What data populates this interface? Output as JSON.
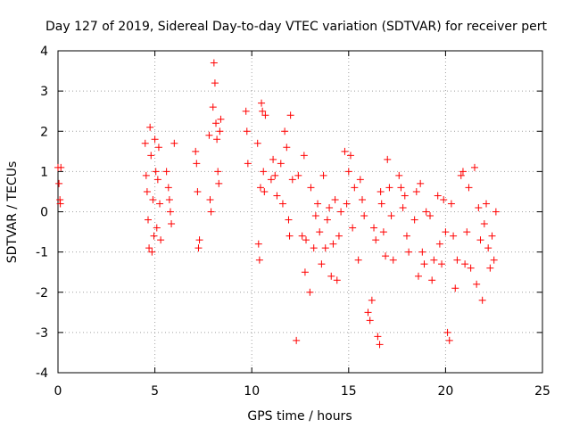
{
  "chart_data": {
    "type": "scatter",
    "title": "Day 127 of 2019, Sidereal Day-to-day VTEC variation (SDTVAR) for receiver pert",
    "xlabel": "GPS time / hours",
    "ylabel": "SDTVAR / TECUs",
    "xlim": [
      0,
      25
    ],
    "ylim": [
      -4,
      4
    ],
    "x_ticks": [
      0,
      5,
      10,
      15,
      20,
      25
    ],
    "y_ticks": [
      -4,
      -3,
      -2,
      -1,
      0,
      1,
      2,
      3,
      4
    ],
    "grid": true,
    "marker": "+",
    "series": [
      {
        "name": "SDTVAR",
        "color": "#ff0000",
        "points": [
          [
            0.0,
            1.1
          ],
          [
            0.05,
            0.7
          ],
          [
            0.1,
            0.3
          ],
          [
            0.12,
            0.2
          ],
          [
            0.15,
            1.1
          ],
          [
            4.5,
            1.7
          ],
          [
            4.55,
            0.9
          ],
          [
            4.6,
            0.5
          ],
          [
            4.65,
            -0.2
          ],
          [
            4.7,
            -0.9
          ],
          [
            4.75,
            2.1
          ],
          [
            4.8,
            1.4
          ],
          [
            4.85,
            -1.0
          ],
          [
            4.9,
            0.3
          ],
          [
            4.95,
            -0.6
          ],
          [
            5.0,
            1.8
          ],
          [
            5.05,
            1.0
          ],
          [
            5.1,
            -0.4
          ],
          [
            5.15,
            0.8
          ],
          [
            5.2,
            1.6
          ],
          [
            5.25,
            0.2
          ],
          [
            5.3,
            -0.7
          ],
          [
            5.6,
            1.0
          ],
          [
            5.7,
            0.6
          ],
          [
            5.75,
            0.3
          ],
          [
            5.8,
            0.0
          ],
          [
            5.85,
            -0.3
          ],
          [
            6.0,
            1.7
          ],
          [
            7.1,
            1.5
          ],
          [
            7.15,
            1.2
          ],
          [
            7.2,
            0.5
          ],
          [
            7.25,
            -0.9
          ],
          [
            7.3,
            -0.7
          ],
          [
            7.8,
            1.9
          ],
          [
            7.85,
            0.3
          ],
          [
            7.9,
            0.0
          ],
          [
            8.0,
            2.6
          ],
          [
            8.05,
            3.7
          ],
          [
            8.1,
            3.2
          ],
          [
            8.15,
            2.2
          ],
          [
            8.2,
            1.8
          ],
          [
            8.25,
            1.0
          ],
          [
            8.3,
            0.7
          ],
          [
            8.35,
            2.0
          ],
          [
            8.4,
            2.3
          ],
          [
            9.7,
            2.5
          ],
          [
            9.75,
            2.0
          ],
          [
            9.8,
            1.2
          ],
          [
            10.3,
            1.7
          ],
          [
            10.35,
            -0.8
          ],
          [
            10.4,
            -1.2
          ],
          [
            10.45,
            0.6
          ],
          [
            10.5,
            2.7
          ],
          [
            10.55,
            2.5
          ],
          [
            10.6,
            1.0
          ],
          [
            10.65,
            0.5
          ],
          [
            10.7,
            2.4
          ],
          [
            11.0,
            0.8
          ],
          [
            11.1,
            1.3
          ],
          [
            11.2,
            0.9
          ],
          [
            11.3,
            0.4
          ],
          [
            11.5,
            1.2
          ],
          [
            11.6,
            0.2
          ],
          [
            11.7,
            2.0
          ],
          [
            11.8,
            1.6
          ],
          [
            11.9,
            -0.2
          ],
          [
            11.95,
            -0.6
          ],
          [
            12.0,
            2.4
          ],
          [
            12.1,
            0.8
          ],
          [
            12.3,
            -3.2
          ],
          [
            12.4,
            0.9
          ],
          [
            12.6,
            -0.6
          ],
          [
            12.7,
            1.4
          ],
          [
            12.75,
            -1.5
          ],
          [
            12.8,
            -0.7
          ],
          [
            13.0,
            -2.0
          ],
          [
            13.05,
            0.6
          ],
          [
            13.2,
            -0.9
          ],
          [
            13.3,
            -0.1
          ],
          [
            13.4,
            0.2
          ],
          [
            13.5,
            -0.5
          ],
          [
            13.6,
            -1.3
          ],
          [
            13.7,
            0.9
          ],
          [
            13.8,
            -0.9
          ],
          [
            13.9,
            -0.2
          ],
          [
            14.0,
            0.1
          ],
          [
            14.1,
            -1.6
          ],
          [
            14.2,
            -0.8
          ],
          [
            14.3,
            0.3
          ],
          [
            14.4,
            -1.7
          ],
          [
            14.5,
            -0.6
          ],
          [
            14.6,
            0.0
          ],
          [
            14.8,
            1.5
          ],
          [
            14.9,
            0.2
          ],
          [
            15.0,
            1.0
          ],
          [
            15.1,
            1.4
          ],
          [
            15.2,
            -0.4
          ],
          [
            15.3,
            0.6
          ],
          [
            15.5,
            -1.2
          ],
          [
            15.6,
            0.8
          ],
          [
            15.7,
            0.3
          ],
          [
            15.8,
            -0.1
          ],
          [
            16.0,
            -2.5
          ],
          [
            16.1,
            -2.7
          ],
          [
            16.2,
            -2.2
          ],
          [
            16.3,
            -0.4
          ],
          [
            16.4,
            -0.7
          ],
          [
            16.5,
            -3.1
          ],
          [
            16.6,
            -3.3
          ],
          [
            16.65,
            0.5
          ],
          [
            16.7,
            0.2
          ],
          [
            16.8,
            -0.5
          ],
          [
            16.9,
            -1.1
          ],
          [
            17.0,
            1.3
          ],
          [
            17.1,
            0.6
          ],
          [
            17.2,
            -0.1
          ],
          [
            17.3,
            -1.2
          ],
          [
            17.6,
            0.9
          ],
          [
            17.7,
            0.6
          ],
          [
            17.8,
            0.1
          ],
          [
            17.9,
            0.4
          ],
          [
            18.0,
            -0.6
          ],
          [
            18.1,
            -1.0
          ],
          [
            18.4,
            -0.2
          ],
          [
            18.5,
            0.5
          ],
          [
            18.6,
            -1.6
          ],
          [
            18.7,
            0.7
          ],
          [
            18.8,
            -1.0
          ],
          [
            18.9,
            -1.3
          ],
          [
            19.0,
            0.0
          ],
          [
            19.2,
            -0.1
          ],
          [
            19.3,
            -1.7
          ],
          [
            19.4,
            -1.2
          ],
          [
            19.6,
            0.4
          ],
          [
            19.7,
            -0.8
          ],
          [
            19.8,
            -1.3
          ],
          [
            19.9,
            0.3
          ],
          [
            20.0,
            -0.5
          ],
          [
            20.1,
            -3.0
          ],
          [
            20.2,
            -3.2
          ],
          [
            20.3,
            0.2
          ],
          [
            20.4,
            -0.6
          ],
          [
            20.5,
            -1.9
          ],
          [
            20.6,
            -1.2
          ],
          [
            20.8,
            0.9
          ],
          [
            20.9,
            1.0
          ],
          [
            21.0,
            -1.3
          ],
          [
            21.1,
            -0.5
          ],
          [
            21.2,
            0.6
          ],
          [
            21.3,
            -1.4
          ],
          [
            21.5,
            1.1
          ],
          [
            21.6,
            -1.8
          ],
          [
            21.7,
            0.1
          ],
          [
            21.8,
            -0.7
          ],
          [
            21.9,
            -2.2
          ],
          [
            22.0,
            -0.3
          ],
          [
            22.1,
            0.2
          ],
          [
            22.2,
            -0.9
          ],
          [
            22.3,
            -1.4
          ],
          [
            22.4,
            -0.6
          ],
          [
            22.5,
            -1.2
          ],
          [
            22.6,
            0.0
          ]
        ]
      }
    ]
  }
}
